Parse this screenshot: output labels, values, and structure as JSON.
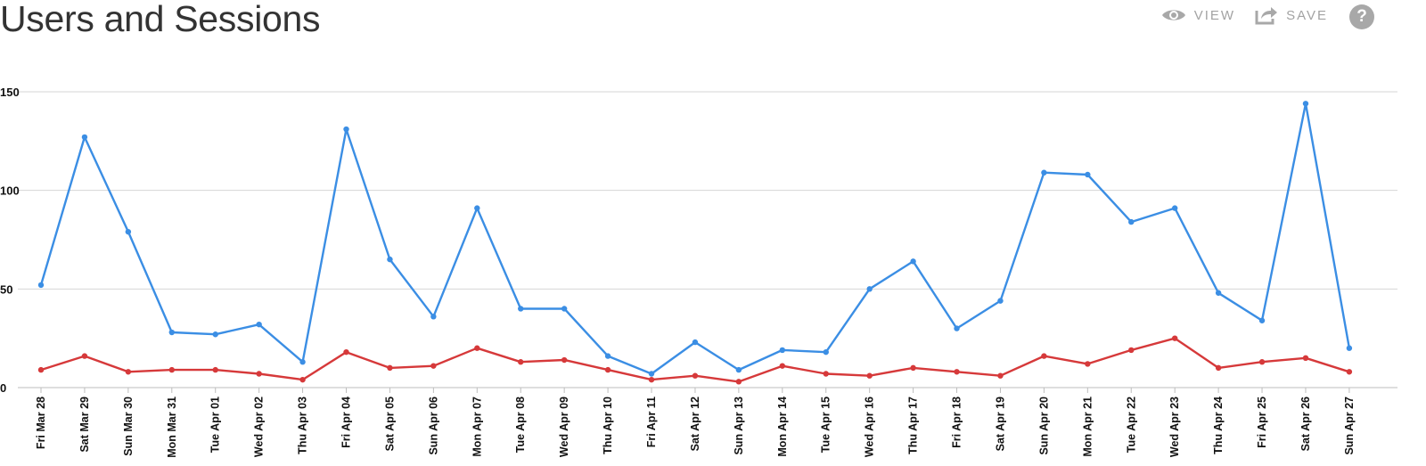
{
  "header": {
    "title": "Users and Sessions",
    "view_label": "VIEW",
    "save_label": "SAVE",
    "help_label": "?",
    "view_icon": "eye-icon",
    "save_icon": "share-icon",
    "help_icon": "help-icon"
  },
  "chart_data": {
    "type": "line",
    "title": "Users and Sessions",
    "xlabel": "",
    "ylabel": "",
    "ylim": [
      0,
      150
    ],
    "yticks": [
      0,
      50,
      100,
      150
    ],
    "grid": true,
    "legend": "none",
    "categories": [
      "Fri Mar 28",
      "Sat Mar 29",
      "Sun Mar 30",
      "Mon Mar 31",
      "Tue Apr 01",
      "Wed Apr 02",
      "Thu Apr 03",
      "Fri Apr 04",
      "Sat Apr 05",
      "Sun Apr 06",
      "Mon Apr 07",
      "Tue Apr 08",
      "Wed Apr 09",
      "Thu Apr 10",
      "Fri Apr 11",
      "Sat Apr 12",
      "Sun Apr 13",
      "Mon Apr 14",
      "Tue Apr 15",
      "Wed Apr 16",
      "Thu Apr 17",
      "Fri Apr 18",
      "Sat Apr 19",
      "Sun Apr 20",
      "Mon Apr 21",
      "Tue Apr 22",
      "Wed Apr 23",
      "Thu Apr 24",
      "Fri Apr 25",
      "Sat Apr 26",
      "Sun Apr 27"
    ],
    "series": [
      {
        "color": "#3b8ee4",
        "values": [
          52,
          127,
          79,
          28,
          27,
          32,
          13,
          131,
          65,
          36,
          91,
          40,
          40,
          16,
          7,
          23,
          9,
          19,
          18,
          50,
          64,
          30,
          44,
          109,
          108,
          84,
          91,
          48,
          34,
          144,
          20
        ]
      },
      {
        "color": "#d6393a",
        "values": [
          9,
          16,
          8,
          9,
          9,
          7,
          4,
          18,
          10,
          11,
          20,
          13,
          14,
          9,
          4,
          6,
          3,
          11,
          7,
          6,
          10,
          8,
          6,
          16,
          12,
          19,
          25,
          10,
          13,
          15,
          8
        ]
      }
    ]
  }
}
